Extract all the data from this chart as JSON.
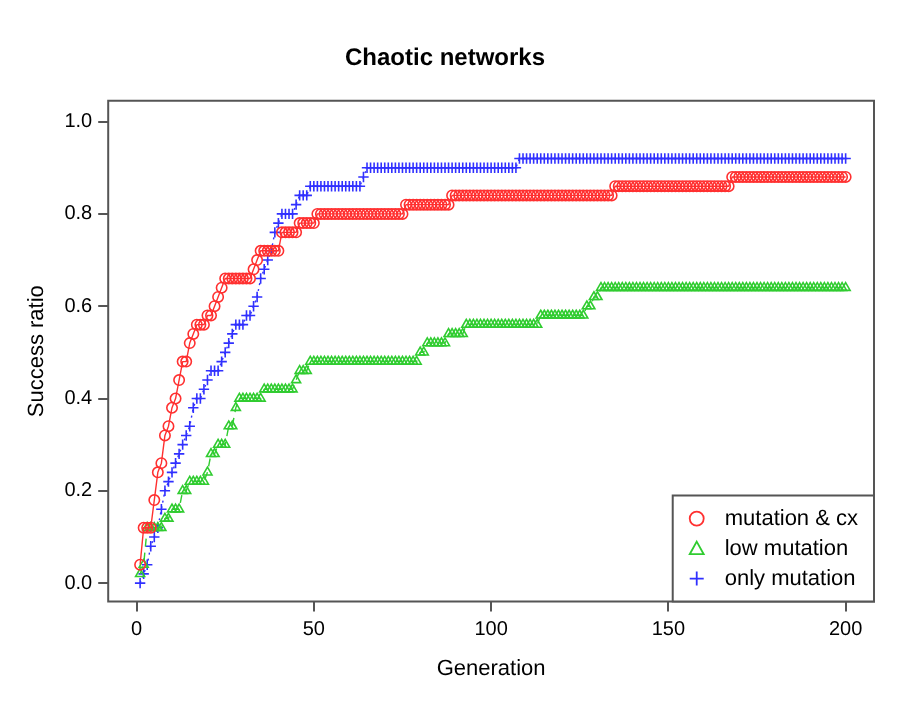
{
  "chart_data": {
    "type": "line",
    "title": "Chaotic networks",
    "xlabel": "Generation",
    "ylabel": "Success ratio",
    "x": [
      1,
      2,
      3,
      4,
      5,
      6,
      7,
      8,
      9,
      10,
      11,
      12,
      13,
      14,
      15,
      16,
      17,
      18,
      19,
      20,
      21,
      22,
      23,
      24,
      25,
      26,
      27,
      28,
      29,
      30,
      31,
      32,
      33,
      34,
      35,
      36,
      37,
      38,
      39,
      40,
      41,
      42,
      43,
      44,
      45,
      46,
      47,
      48,
      49,
      50,
      51,
      52,
      53,
      54,
      55,
      56,
      57,
      58,
      59,
      60,
      61,
      62,
      63,
      64,
      65,
      66,
      67,
      68,
      69,
      70,
      71,
      72,
      73,
      74,
      75,
      76,
      77,
      78,
      79,
      80,
      81,
      82,
      83,
      84,
      85,
      86,
      87,
      88,
      89,
      90,
      91,
      92,
      93,
      94,
      95,
      96,
      97,
      98,
      99,
      100,
      101,
      102,
      103,
      104,
      105,
      106,
      107,
      108,
      109,
      110,
      111,
      112,
      113,
      114,
      115,
      116,
      117,
      118,
      119,
      120,
      121,
      122,
      123,
      124,
      125,
      126,
      127,
      128,
      129,
      130,
      131,
      132,
      133,
      134,
      135,
      136,
      137,
      138,
      139,
      140,
      141,
      142,
      143,
      144,
      145,
      146,
      147,
      148,
      149,
      150,
      151,
      152,
      153,
      154,
      155,
      156,
      157,
      158,
      159,
      160,
      161,
      162,
      163,
      164,
      165,
      166,
      167,
      168,
      169,
      170,
      171,
      172,
      173,
      174,
      175,
      176,
      177,
      178,
      179,
      180,
      181,
      182,
      183,
      184,
      185,
      186,
      187,
      188,
      189,
      190,
      191,
      192,
      193,
      194,
      195,
      196,
      197,
      198,
      199,
      200
    ],
    "series": [
      {
        "name": "mutation & cx",
        "color": "#ff3030",
        "marker": "circle",
        "line_style": "solid",
        "values": [
          0.04,
          0.12,
          0.12,
          0.12,
          0.18,
          0.24,
          0.26,
          0.32,
          0.34,
          0.38,
          0.4,
          0.44,
          0.48,
          0.48,
          0.52,
          0.54,
          0.56,
          0.56,
          0.56,
          0.58,
          0.58,
          0.6,
          0.62,
          0.64,
          0.66,
          0.66,
          0.66,
          0.66,
          0.66,
          0.66,
          0.66,
          0.66,
          0.68,
          0.7,
          0.72,
          0.72,
          0.72,
          0.72,
          0.72,
          0.72,
          0.76,
          0.76,
          0.76,
          0.76,
          0.76,
          0.78,
          0.78,
          0.78,
          0.78,
          0.78,
          0.8,
          0.8,
          0.8,
          0.8,
          0.8,
          0.8,
          0.8,
          0.8,
          0.8,
          0.8,
          0.8,
          0.8,
          0.8,
          0.8,
          0.8,
          0.8,
          0.8,
          0.8,
          0.8,
          0.8,
          0.8,
          0.8,
          0.8,
          0.8,
          0.8,
          0.82,
          0.82,
          0.82,
          0.82,
          0.82,
          0.82,
          0.82,
          0.82,
          0.82,
          0.82,
          0.82,
          0.82,
          0.82,
          0.84,
          0.84,
          0.84,
          0.84,
          0.84,
          0.84,
          0.84,
          0.84,
          0.84,
          0.84,
          0.84,
          0.84,
          0.84,
          0.84,
          0.84,
          0.84,
          0.84,
          0.84,
          0.84,
          0.84,
          0.84,
          0.84,
          0.84,
          0.84,
          0.84,
          0.84,
          0.84,
          0.84,
          0.84,
          0.84,
          0.84,
          0.84,
          0.84,
          0.84,
          0.84,
          0.84,
          0.84,
          0.84,
          0.84,
          0.84,
          0.84,
          0.84,
          0.84,
          0.84,
          0.84,
          0.84,
          0.86,
          0.86,
          0.86,
          0.86,
          0.86,
          0.86,
          0.86,
          0.86,
          0.86,
          0.86,
          0.86,
          0.86,
          0.86,
          0.86,
          0.86,
          0.86,
          0.86,
          0.86,
          0.86,
          0.86,
          0.86,
          0.86,
          0.86,
          0.86,
          0.86,
          0.86,
          0.86,
          0.86,
          0.86,
          0.86,
          0.86,
          0.86,
          0.86,
          0.88,
          0.88,
          0.88,
          0.88,
          0.88,
          0.88,
          0.88,
          0.88,
          0.88,
          0.88,
          0.88,
          0.88,
          0.88,
          0.88,
          0.88,
          0.88,
          0.88,
          0.88,
          0.88,
          0.88,
          0.88,
          0.88,
          0.88,
          0.88,
          0.88,
          0.88,
          0.88,
          0.88,
          0.88,
          0.88,
          0.88,
          0.88,
          0.88
        ]
      },
      {
        "name": "low mutation",
        "color": "#30cc30",
        "marker": "triangle",
        "line_style": "dashed",
        "values": [
          0.02,
          0.04,
          0.12,
          0.12,
          0.12,
          0.12,
          0.12,
          0.14,
          0.14,
          0.16,
          0.16,
          0.16,
          0.2,
          0.2,
          0.22,
          0.22,
          0.22,
          0.22,
          0.22,
          0.24,
          0.28,
          0.28,
          0.3,
          0.3,
          0.3,
          0.34,
          0.34,
          0.38,
          0.4,
          0.4,
          0.4,
          0.4,
          0.4,
          0.4,
          0.4,
          0.42,
          0.42,
          0.42,
          0.42,
          0.42,
          0.42,
          0.42,
          0.42,
          0.42,
          0.44,
          0.46,
          0.46,
          0.46,
          0.48,
          0.48,
          0.48,
          0.48,
          0.48,
          0.48,
          0.48,
          0.48,
          0.48,
          0.48,
          0.48,
          0.48,
          0.48,
          0.48,
          0.48,
          0.48,
          0.48,
          0.48,
          0.48,
          0.48,
          0.48,
          0.48,
          0.48,
          0.48,
          0.48,
          0.48,
          0.48,
          0.48,
          0.48,
          0.48,
          0.48,
          0.5,
          0.5,
          0.52,
          0.52,
          0.52,
          0.52,
          0.52,
          0.52,
          0.54,
          0.54,
          0.54,
          0.54,
          0.54,
          0.56,
          0.56,
          0.56,
          0.56,
          0.56,
          0.56,
          0.56,
          0.56,
          0.56,
          0.56,
          0.56,
          0.56,
          0.56,
          0.56,
          0.56,
          0.56,
          0.56,
          0.56,
          0.56,
          0.56,
          0.56,
          0.58,
          0.58,
          0.58,
          0.58,
          0.58,
          0.58,
          0.58,
          0.58,
          0.58,
          0.58,
          0.58,
          0.58,
          0.58,
          0.6,
          0.6,
          0.62,
          0.62,
          0.64,
          0.64,
          0.64,
          0.64,
          0.64,
          0.64,
          0.64,
          0.64,
          0.64,
          0.64,
          0.64,
          0.64,
          0.64,
          0.64,
          0.64,
          0.64,
          0.64,
          0.64,
          0.64,
          0.64,
          0.64,
          0.64,
          0.64,
          0.64,
          0.64,
          0.64,
          0.64,
          0.64,
          0.64,
          0.64,
          0.64,
          0.64,
          0.64,
          0.64,
          0.64,
          0.64,
          0.64,
          0.64,
          0.64,
          0.64,
          0.64,
          0.64,
          0.64,
          0.64,
          0.64,
          0.64,
          0.64,
          0.64,
          0.64,
          0.64,
          0.64,
          0.64,
          0.64,
          0.64,
          0.64,
          0.64,
          0.64,
          0.64,
          0.64,
          0.64,
          0.64,
          0.64,
          0.64,
          0.64,
          0.64,
          0.64,
          0.64,
          0.64,
          0.64,
          0.64
        ]
      },
      {
        "name": "only mutation",
        "color": "#3030ff",
        "marker": "cross",
        "line_style": "dotted",
        "values": [
          0,
          0.02,
          0.04,
          0.08,
          0.1,
          0.12,
          0.16,
          0.2,
          0.22,
          0.24,
          0.26,
          0.28,
          0.3,
          0.32,
          0.34,
          0.38,
          0.4,
          0.4,
          0.42,
          0.44,
          0.46,
          0.46,
          0.46,
          0.48,
          0.5,
          0.52,
          0.54,
          0.56,
          0.56,
          0.56,
          0.58,
          0.58,
          0.6,
          0.62,
          0.66,
          0.68,
          0.7,
          0.72,
          0.76,
          0.78,
          0.8,
          0.8,
          0.8,
          0.8,
          0.82,
          0.84,
          0.84,
          0.84,
          0.86,
          0.86,
          0.86,
          0.86,
          0.86,
          0.86,
          0.86,
          0.86,
          0.86,
          0.86,
          0.86,
          0.86,
          0.86,
          0.86,
          0.86,
          0.88,
          0.9,
          0.9,
          0.9,
          0.9,
          0.9,
          0.9,
          0.9,
          0.9,
          0.9,
          0.9,
          0.9,
          0.9,
          0.9,
          0.9,
          0.9,
          0.9,
          0.9,
          0.9,
          0.9,
          0.9,
          0.9,
          0.9,
          0.9,
          0.9,
          0.9,
          0.9,
          0.9,
          0.9,
          0.9,
          0.9,
          0.9,
          0.9,
          0.9,
          0.9,
          0.9,
          0.9,
          0.9,
          0.9,
          0.9,
          0.9,
          0.9,
          0.9,
          0.9,
          0.92,
          0.92,
          0.92,
          0.92,
          0.92,
          0.92,
          0.92,
          0.92,
          0.92,
          0.92,
          0.92,
          0.92,
          0.92,
          0.92,
          0.92,
          0.92,
          0.92,
          0.92,
          0.92,
          0.92,
          0.92,
          0.92,
          0.92,
          0.92,
          0.92,
          0.92,
          0.92,
          0.92,
          0.92,
          0.92,
          0.92,
          0.92,
          0.92,
          0.92,
          0.92,
          0.92,
          0.92,
          0.92,
          0.92,
          0.92,
          0.92,
          0.92,
          0.92,
          0.92,
          0.92,
          0.92,
          0.92,
          0.92,
          0.92,
          0.92,
          0.92,
          0.92,
          0.92,
          0.92,
          0.92,
          0.92,
          0.92,
          0.92,
          0.92,
          0.92,
          0.92,
          0.92,
          0.92,
          0.92,
          0.92,
          0.92,
          0.92,
          0.92,
          0.92,
          0.92,
          0.92,
          0.92,
          0.92,
          0.92,
          0.92,
          0.92,
          0.92,
          0.92,
          0.92,
          0.92,
          0.92,
          0.92,
          0.92,
          0.92,
          0.92,
          0.92,
          0.92,
          0.92,
          0.92,
          0.92,
          0.92,
          0.92,
          0.92
        ]
      }
    ],
    "xlim": [
      -8,
      208
    ],
    "xticks": [
      0,
      50,
      100,
      150,
      200
    ],
    "ylim": [
      -0.04,
      1.045
    ],
    "yticks": [
      {
        "value": 0,
        "label": "0.0"
      },
      {
        "value": 0.2,
        "label": "0.2"
      },
      {
        "value": 0.4,
        "label": "0.4"
      },
      {
        "value": 0.6,
        "label": "0.6"
      },
      {
        "value": 0.8,
        "label": "0.8"
      },
      {
        "value": 1,
        "label": "1.0"
      }
    ],
    "grid": false,
    "legend": "bottom right"
  }
}
